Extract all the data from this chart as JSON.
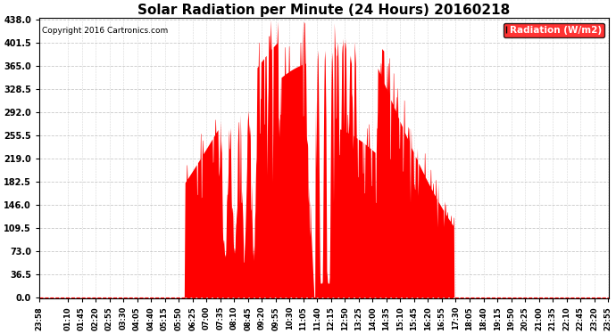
{
  "title": "Solar Radiation per Minute (24 Hours) 20160218",
  "copyright_text": "Copyright 2016 Cartronics.com",
  "legend_label": "Radiation (W/m2)",
  "yticks": [
    0.0,
    36.5,
    73.0,
    109.5,
    146.0,
    182.5,
    219.0,
    255.5,
    292.0,
    328.5,
    365.0,
    401.5,
    438.0
  ],
  "ymax": 438.0,
  "ymin": 0.0,
  "fill_color": "#FF0000",
  "line_color": "#FF0000",
  "zero_line_color": "#FF0000",
  "background_color": "#FFFFFF",
  "grid_color": "#BBBBBB",
  "title_fontsize": 11,
  "legend_bg": "#FF0000",
  "legend_fg": "#FFFFFF",
  "xtick_labels": [
    "23:58",
    "01:10",
    "01:45",
    "02:20",
    "02:55",
    "03:30",
    "04:05",
    "04:40",
    "05:15",
    "05:50",
    "06:25",
    "07:00",
    "07:35",
    "08:10",
    "08:45",
    "09:20",
    "09:55",
    "10:30",
    "11:05",
    "11:40",
    "12:15",
    "12:50",
    "13:25",
    "14:00",
    "14:35",
    "15:10",
    "15:45",
    "16:20",
    "16:55",
    "17:30",
    "18:05",
    "18:40",
    "19:15",
    "19:50",
    "20:25",
    "21:00",
    "21:35",
    "22:10",
    "22:45",
    "23:20",
    "23:55"
  ]
}
